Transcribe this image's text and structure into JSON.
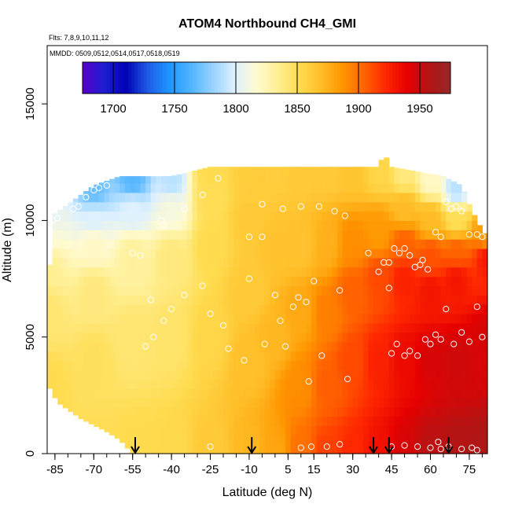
{
  "chart_data": {
    "type": "heatmap",
    "title": "ATOM4 Northbound CH4_GMI",
    "flights_label": "Flts: 7,8,9,10,11,12",
    "dates_label": "MMDD: 0509,0512,0514,0517,0518,0519",
    "xlabel": "Latitude (deg N)",
    "ylabel": "Altitude (m)",
    "xlim": [
      -88,
      82
    ],
    "ylim": [
      0,
      17500
    ],
    "x_ticks": [
      -85,
      -70,
      -55,
      -40,
      -25,
      -10,
      5,
      15,
      30,
      45,
      60,
      75
    ],
    "x_tick_labels": [
      "-85",
      "-70",
      "-55",
      "-40",
      "-25",
      "-10",
      "5",
      "15",
      "30",
      "45",
      "60",
      "75"
    ],
    "y_ticks": [
      0,
      5000,
      10000,
      15000
    ],
    "y_tick_labels": [
      "0",
      "5000",
      "10000",
      "15000"
    ],
    "colorbar": {
      "min": 1675,
      "max": 1975,
      "ticks": [
        1700,
        1750,
        1800,
        1850,
        1900,
        1950
      ],
      "tick_labels": [
        "1700",
        "1750",
        "1800",
        "1850",
        "1900",
        "1950"
      ],
      "colors": [
        "#5a00c8",
        "#1e1ed2",
        "#0000b4",
        "#1e5ae6",
        "#1e96ff",
        "#50b4ff",
        "#96d2ff",
        "#dcf0ff",
        "#fffad2",
        "#fff096",
        "#ffdc50",
        "#ffbe28",
        "#ff9600",
        "#ff6400",
        "#ff2800",
        "#e60000",
        "#b41414",
        "#962828"
      ]
    },
    "arrow_latitudes": [
      -54,
      -9,
      38,
      44,
      67
    ],
    "bounds": [
      {
        "lat": -88,
        "top": 7000
      },
      {
        "lat": -85,
        "top": 10300
      },
      {
        "lat": -80,
        "top": 10700
      },
      {
        "lat": -75,
        "top": 11100
      },
      {
        "lat": -70,
        "top": 11500
      },
      {
        "lat": -60,
        "top": 11900
      },
      {
        "lat": -40,
        "top": 11900
      },
      {
        "lat": -25,
        "top": 12300
      },
      {
        "lat": 40,
        "top": 12300
      },
      {
        "lat": 42,
        "top": 12900
      },
      {
        "lat": 45,
        "top": 12300
      },
      {
        "lat": 65,
        "top": 11900
      },
      {
        "lat": 72,
        "top": 11500
      },
      {
        "lat": 75,
        "top": 10700
      },
      {
        "lat": 78,
        "top": 10000
      },
      {
        "lat": 80,
        "top": 9600
      },
      {
        "lat": 82,
        "top": 9300
      }
    ],
    "bottoms": [
      {
        "lat": -88,
        "bottom": 3000
      },
      {
        "lat": -84,
        "bottom": 2200
      },
      {
        "lat": -75,
        "bottom": 1500
      },
      {
        "lat": -66,
        "bottom": 1000
      },
      {
        "lat": -60,
        "bottom": 600
      },
      {
        "lat": -55,
        "bottom": 0
      },
      {
        "lat": 82,
        "bottom": 0
      }
    ],
    "anchors": [
      [
        -88,
        0,
        1850
      ],
      [
        -88,
        3000,
        1852
      ],
      [
        -88,
        6000,
        1843
      ],
      [
        -88,
        8000,
        1835
      ],
      [
        -88,
        9500,
        1815
      ],
      [
        -88,
        10200,
        1800
      ],
      [
        -70,
        0,
        1850
      ],
      [
        -70,
        4000,
        1848
      ],
      [
        -70,
        7000,
        1840
      ],
      [
        -70,
        9000,
        1820
      ],
      [
        -70,
        10000,
        1800
      ],
      [
        -70,
        11300,
        1770
      ],
      [
        -55,
        0,
        1852
      ],
      [
        -55,
        5000,
        1843
      ],
      [
        -55,
        8500,
        1832
      ],
      [
        -55,
        10500,
        1800
      ],
      [
        -55,
        11700,
        1765
      ],
      [
        -40,
        0,
        1853
      ],
      [
        -40,
        5000,
        1845
      ],
      [
        -40,
        8500,
        1840
      ],
      [
        -40,
        10500,
        1812
      ],
      [
        -40,
        11700,
        1790
      ],
      [
        -25,
        0,
        1862
      ],
      [
        -25,
        5000,
        1855
      ],
      [
        -25,
        9000,
        1852
      ],
      [
        -25,
        11000,
        1850
      ],
      [
        -25,
        12200,
        1852
      ],
      [
        -10,
        0,
        1872
      ],
      [
        -10,
        4000,
        1868
      ],
      [
        -10,
        7000,
        1862
      ],
      [
        -10,
        10000,
        1862
      ],
      [
        -10,
        12200,
        1860
      ],
      [
        0,
        0,
        1880
      ],
      [
        0,
        5000,
        1872
      ],
      [
        0,
        9000,
        1866
      ],
      [
        0,
        12200,
        1860
      ],
      [
        10,
        0,
        1900
      ],
      [
        10,
        3000,
        1890
      ],
      [
        10,
        6000,
        1878
      ],
      [
        10,
        9000,
        1866
      ],
      [
        10,
        12200,
        1862
      ],
      [
        20,
        0,
        1915
      ],
      [
        20,
        3000,
        1906
      ],
      [
        20,
        6000,
        1895
      ],
      [
        20,
        9000,
        1875
      ],
      [
        20,
        12200,
        1862
      ],
      [
        30,
        0,
        1922
      ],
      [
        30,
        4000,
        1912
      ],
      [
        30,
        7000,
        1905
      ],
      [
        30,
        9000,
        1890
      ],
      [
        30,
        12200,
        1865
      ],
      [
        40,
        0,
        1932
      ],
      [
        40,
        4000,
        1925
      ],
      [
        40,
        7500,
        1912
      ],
      [
        40,
        9500,
        1885
      ],
      [
        40,
        12200,
        1855
      ],
      [
        50,
        0,
        1945
      ],
      [
        50,
        4000,
        1935
      ],
      [
        50,
        7500,
        1925
      ],
      [
        50,
        9000,
        1905
      ],
      [
        50,
        10500,
        1870
      ],
      [
        50,
        12000,
        1840
      ],
      [
        60,
        0,
        1955
      ],
      [
        60,
        4000,
        1945
      ],
      [
        60,
        7000,
        1930
      ],
      [
        60,
        8500,
        1910
      ],
      [
        60,
        10000,
        1870
      ],
      [
        60,
        11800,
        1820
      ],
      [
        70,
        0,
        1958
      ],
      [
        70,
        4000,
        1948
      ],
      [
        70,
        7500,
        1930
      ],
      [
        70,
        8700,
        1905
      ],
      [
        70,
        10000,
        1850
      ],
      [
        70,
        11400,
        1790
      ],
      [
        82,
        0,
        1960
      ],
      [
        82,
        5000,
        1945
      ],
      [
        82,
        8500,
        1930
      ],
      [
        82,
        9300,
        1880
      ]
    ],
    "observations": [
      [
        -86,
        10000
      ],
      [
        -84,
        10100
      ],
      [
        -78,
        10500
      ],
      [
        -76,
        10600
      ],
      [
        -73,
        11000
      ],
      [
        -70,
        11300
      ],
      [
        -68,
        11400
      ],
      [
        -65,
        11500
      ],
      [
        -55,
        8600
      ],
      [
        -52,
        8500
      ],
      [
        -44,
        10000
      ],
      [
        -43,
        9800
      ],
      [
        -35,
        10500
      ],
      [
        -28,
        11100
      ],
      [
        -22,
        11800
      ],
      [
        -28,
        7200
      ],
      [
        -35,
        6800
      ],
      [
        -40,
        6200
      ],
      [
        -43,
        5700
      ],
      [
        -47,
        5000
      ],
      [
        -50,
        4600
      ],
      [
        -48,
        6600
      ],
      [
        -25,
        6000
      ],
      [
        -20,
        5500
      ],
      [
        -18,
        4500
      ],
      [
        -12,
        4000
      ],
      [
        -10,
        7500
      ],
      [
        -10,
        9300
      ],
      [
        -5,
        9300
      ],
      [
        0,
        6800
      ],
      [
        2,
        5700
      ],
      [
        -4,
        4700
      ],
      [
        4,
        4600
      ],
      [
        7,
        6300
      ],
      [
        9,
        6700
      ],
      [
        12,
        6500
      ],
      [
        15,
        7400
      ],
      [
        -5,
        10700
      ],
      [
        3,
        10500
      ],
      [
        10,
        10600
      ],
      [
        17,
        10600
      ],
      [
        23,
        10400
      ],
      [
        27,
        10200
      ],
      [
        18,
        4200
      ],
      [
        13,
        3100
      ],
      [
        28,
        3200
      ],
      [
        25,
        7000
      ],
      [
        36,
        8600
      ],
      [
        40,
        7800
      ],
      [
        42,
        8200
      ],
      [
        44,
        8200
      ],
      [
        46,
        8800
      ],
      [
        48,
        8600
      ],
      [
        50,
        8800
      ],
      [
        52,
        8500
      ],
      [
        54,
        8000
      ],
      [
        56,
        8100
      ],
      [
        57,
        8300
      ],
      [
        59,
        7900
      ],
      [
        62,
        9500
      ],
      [
        64,
        9300
      ],
      [
        66,
        10800
      ],
      [
        68,
        10500
      ],
      [
        70,
        10600
      ],
      [
        72,
        10400
      ],
      [
        75,
        9400
      ],
      [
        78,
        9400
      ],
      [
        80,
        9300
      ],
      [
        44,
        7100
      ],
      [
        47,
        4700
      ],
      [
        45,
        4300
      ],
      [
        50,
        4200
      ],
      [
        52,
        4400
      ],
      [
        55,
        4200
      ],
      [
        58,
        4900
      ],
      [
        60,
        4700
      ],
      [
        62,
        5100
      ],
      [
        64,
        4900
      ],
      [
        66,
        6200
      ],
      [
        69,
        4700
      ],
      [
        72,
        5200
      ],
      [
        75,
        4800
      ],
      [
        78,
        6300
      ],
      [
        80,
        5000
      ],
      [
        45,
        300
      ],
      [
        50,
        350
      ],
      [
        55,
        300
      ],
      [
        60,
        250
      ],
      [
        63,
        500
      ],
      [
        64,
        200
      ],
      [
        67,
        300
      ],
      [
        72,
        200
      ],
      [
        76,
        250
      ],
      [
        78,
        150
      ],
      [
        10,
        250
      ],
      [
        14,
        300
      ],
      [
        -25,
        300
      ],
      [
        20,
        300
      ],
      [
        25,
        400
      ]
    ]
  }
}
